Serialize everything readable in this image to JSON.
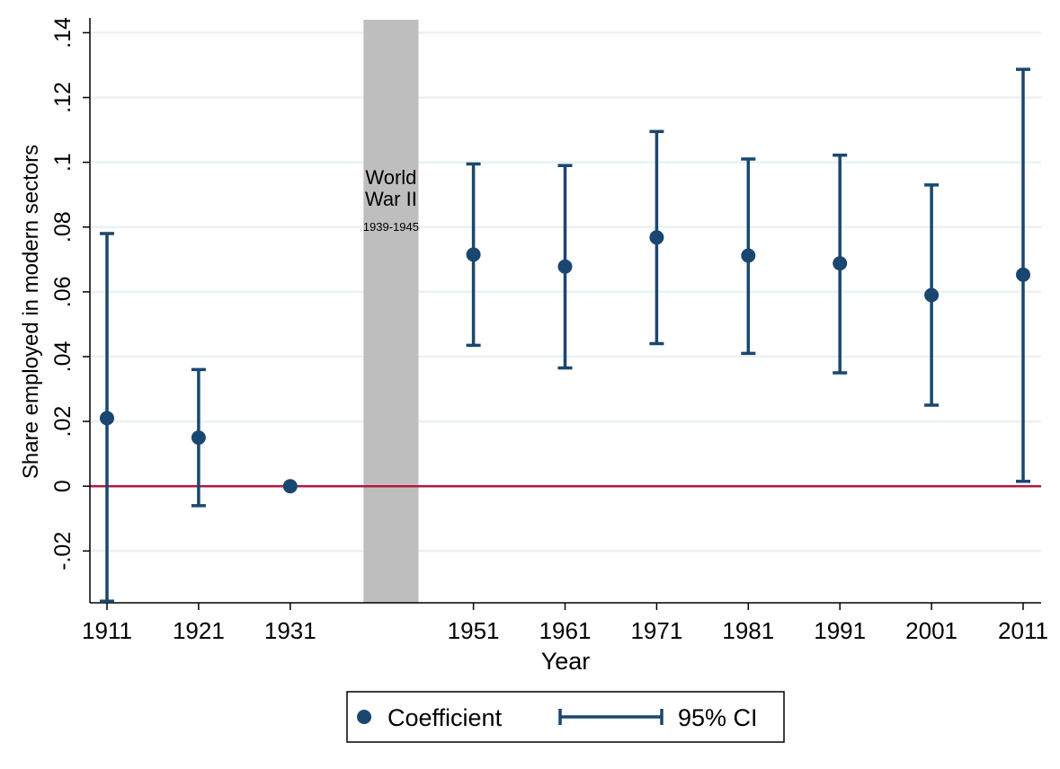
{
  "chart_data": {
    "type": "scatter",
    "xlabel": "Year",
    "ylabel": "Share employed in modern sectors",
    "x_ticks": [
      1911,
      1921,
      1931,
      1951,
      1961,
      1971,
      1981,
      1991,
      2001,
      2011
    ],
    "x_range": [
      1911,
      2011
    ],
    "ylim": [
      -0.036,
      0.144
    ],
    "y_ticks": [
      {
        "value": -0.02,
        "label": "-.02"
      },
      {
        "value": 0,
        "label": "0"
      },
      {
        "value": 0.02,
        "label": ".02"
      },
      {
        "value": 0.04,
        "label": ".04"
      },
      {
        "value": 0.06,
        "label": ".06"
      },
      {
        "value": 0.08,
        "label": ".08"
      },
      {
        "value": 0.1,
        "label": ".1"
      },
      {
        "value": 0.12,
        "label": ".12"
      },
      {
        "value": 0.14,
        "label": ".14"
      }
    ],
    "grid": true,
    "reference_line": {
      "y": 0,
      "color": "#b5183f"
    },
    "shaded_band": {
      "from": 1939,
      "to": 1945,
      "title_lines": [
        "World",
        "War II"
      ],
      "subtitle": "1939-1945",
      "color": "#bebebe"
    },
    "series": [
      {
        "name": "Coefficient",
        "color": "#1a476f",
        "points": [
          {
            "x": 1911,
            "y": 0.021,
            "ci_low": -0.0355,
            "ci_high": 0.078
          },
          {
            "x": 1921,
            "y": 0.015,
            "ci_low": -0.006,
            "ci_high": 0.036
          },
          {
            "x": 1931,
            "y": 0.0,
            "ci_low": null,
            "ci_high": null
          },
          {
            "x": 1951,
            "y": 0.0715,
            "ci_low": 0.0435,
            "ci_high": 0.0995
          },
          {
            "x": 1961,
            "y": 0.0678,
            "ci_low": 0.0365,
            "ci_high": 0.099
          },
          {
            "x": 1971,
            "y": 0.0768,
            "ci_low": 0.044,
            "ci_high": 0.1095
          },
          {
            "x": 1981,
            "y": 0.0712,
            "ci_low": 0.041,
            "ci_high": 0.101
          },
          {
            "x": 1991,
            "y": 0.0688,
            "ci_low": 0.035,
            "ci_high": 0.1022
          },
          {
            "x": 2001,
            "y": 0.059,
            "ci_low": 0.025,
            "ci_high": 0.093
          },
          {
            "x": 2011,
            "y": 0.0653,
            "ci_low": 0.0015,
            "ci_high": 0.1287
          }
        ]
      }
    ],
    "legend": {
      "position": "bottom",
      "entries": [
        {
          "label": "Coefficient",
          "symbol": "dot"
        },
        {
          "label": "95% CI",
          "symbol": "capped-range"
        }
      ]
    }
  }
}
